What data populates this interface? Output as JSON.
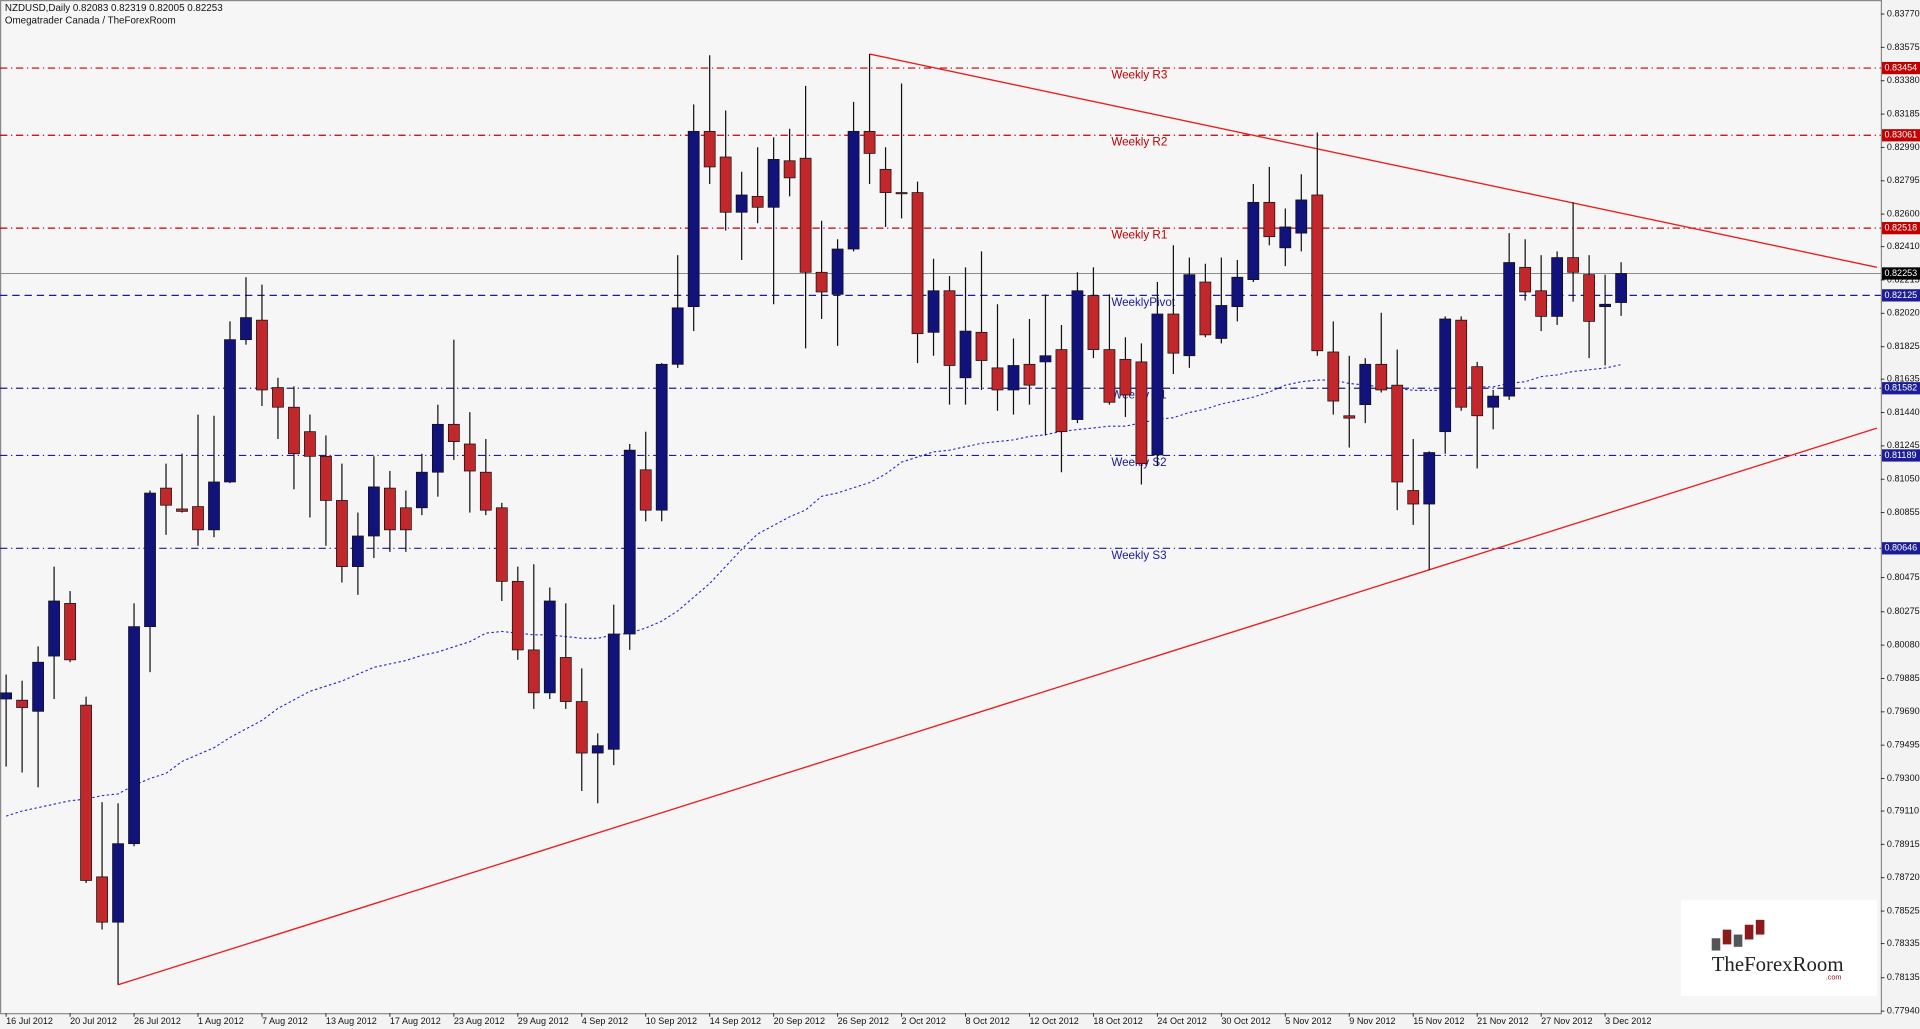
{
  "chart_data": {
    "type": "candlestick",
    "header": "NZDUSD,Daily  0.82083 0.82319 0.82005 0.82253",
    "source": "Omegatrader Canada / TheForexRoom",
    "logo": "TheForexRoom",
    "logo_suffix": ".com",
    "categories": [
      "16 Jul 2012",
      null,
      null,
      null,
      "20 Jul 2012",
      null,
      null,
      null,
      "26 Jul 2012",
      null,
      null,
      null,
      "1 Aug 2012",
      null,
      null,
      null,
      "7 Aug 2012",
      null,
      null,
      null,
      "13 Aug 2012",
      null,
      null,
      null,
      "17 Aug 2012",
      null,
      null,
      null,
      "23 Aug 2012",
      null,
      null,
      null,
      "29 Aug 2012",
      null,
      null,
      null,
      "4 Sep 2012",
      null,
      null,
      null,
      "10 Sep 2012",
      null,
      null,
      null,
      "14 Sep 2012",
      null,
      null,
      null,
      "20 Sep 2012",
      null,
      null,
      null,
      "26 Sep 2012",
      null,
      null,
      null,
      "2 Oct 2012",
      null,
      null,
      null,
      "8 Oct 2012",
      null,
      null,
      null,
      "12 Oct 2012",
      null,
      null,
      null,
      "18 Oct 2012",
      null,
      null,
      null,
      "24 Oct 2012",
      null,
      null,
      null,
      "30 Oct 2012",
      null,
      null,
      null,
      "5 Nov 2012",
      null,
      null,
      null,
      "9 Nov 2012",
      null,
      null,
      null,
      "15 Nov 2012",
      null,
      null,
      null,
      "21 Nov 2012",
      null,
      null,
      null,
      "27 Nov 2012",
      null,
      null,
      null,
      "3 Dec 2012",
      null
    ],
    "open": [
      0.79765,
      0.79758,
      0.79693,
      0.80016,
      0.80324,
      0.79729,
      0.78725,
      0.7846,
      0.78919,
      0.80188,
      0.80998,
      0.80876,
      0.8089,
      0.80754,
      0.81034,
      0.81866,
      0.8198,
      0.81586,
      0.81471,
      0.81328,
      0.81184,
      0.80926,
      0.80539,
      0.80718,
      0.80998,
      0.80883,
      0.80883,
      0.81091,
      0.81371,
      0.81256,
      0.81091,
      0.80883,
      0.80453,
      0.80052,
      0.79801,
      0.80008,
      0.7975,
      0.79449,
      0.79471,
      0.80145,
      0.81105,
      0.80869,
      0.81722,
      0.82059,
      0.83084,
      0.82934,
      0.82611,
      0.82704,
      0.8264,
      0.82912,
      0.82927,
      0.8226,
      0.82131,
      0.82396,
      0.83084,
      0.82862,
      0.82726,
      0.82726,
      0.81909,
      0.82152,
      0.81643,
      0.81909,
      0.81701,
      0.81572,
      0.81722,
      0.81736,
      0.81808,
      0.81399,
      0.82124,
      0.81808,
      0.81751,
      0.81736,
      0.81192,
      0.82016,
      0.81772,
      0.82203,
      0.81873,
      0.82059,
      0.82217,
      0.82669,
      0.82403,
      0.82489,
      0.82712,
      0.81794,
      0.81421,
      0.81486,
      0.81722,
      0.816,
      0.80984,
      0.80905,
      0.81328,
      0.8198,
      0.81708,
      0.81471,
      0.81536,
      0.82289,
      0.82152,
      0.82002,
      0.82346,
      0.82246,
      0.82059,
      0.82083
    ],
    "high": [
      0.79908,
      0.79872,
      0.80073,
      0.80539,
      0.80396,
      0.79779,
      0.79162,
      0.79155,
      0.80324,
      0.80984,
      0.81141,
      0.81199,
      0.81428,
      0.81421,
      0.81973,
      0.82231,
      0.82188,
      0.81643,
      0.81593,
      0.81428,
      0.81306,
      0.81141,
      0.80855,
      0.81184,
      0.81098,
      0.80984,
      0.81199,
      0.81486,
      0.81866,
      0.81442,
      0.81285,
      0.80912,
      0.80539,
      0.80553,
      0.80417,
      0.80324,
      0.79944,
      0.79564,
      0.80317,
      0.81256,
      0.81328,
      0.81729,
      0.8236,
      0.83242,
      0.83529,
      0.83206,
      0.82848,
      0.82991,
      0.83049,
      0.83099,
      0.8335,
      0.82561,
      0.82453,
      0.83256,
      0.83536,
      0.82991,
      0.83364,
      0.8279,
      0.82339,
      0.82238,
      0.82289,
      0.82382,
      0.82073,
      0.81873,
      0.81987,
      0.82131,
      0.81952,
      0.8226,
      0.82289,
      0.82131,
      0.8188,
      0.81844,
      0.82203,
      0.82418,
      0.82346,
      0.8231,
      0.82346,
      0.82332,
      0.82776,
      0.82876,
      0.82633,
      0.82833,
      0.83077,
      0.81973,
      0.81772,
      0.81758,
      0.82023,
      0.81808,
      0.81285,
      0.81213,
      0.82002,
      0.82002,
      0.81736,
      0.81572,
      0.82489,
      0.82453,
      0.8236,
      0.82382,
      0.82669,
      0.8236,
      0.82246,
      0.82319
    ],
    "low": [
      0.7937,
      0.79335,
      0.79248,
      0.79765,
      0.7998,
      0.78689,
      0.78417,
      0.78094,
      0.78904,
      0.79922,
      0.80725,
      0.80855,
      0.80661,
      0.80711,
      0.81027,
      0.81837,
      0.81478,
      0.81285,
      0.80991,
      0.80826,
      0.80661,
      0.80446,
      0.80374,
      0.80589,
      0.80625,
      0.80625,
      0.8084,
      0.80948,
      0.81163,
      0.80855,
      0.8084,
      0.80338,
      0.79994,
      0.79707,
      0.79765,
      0.79707,
      0.79227,
      0.79155,
      0.79378,
      0.80052,
      0.80804,
      0.80804,
      0.81701,
      0.81916,
      0.82776,
      0.82504,
      0.82332,
      0.82547,
      0.82073,
      0.82704,
      0.81815,
      0.81987,
      0.8183,
      0.82382,
      0.82776,
      0.82525,
      0.82575,
      0.81729,
      0.81772,
      0.81486,
      0.81486,
      0.81572,
      0.8145,
      0.81428,
      0.81486,
      0.81306,
      0.81091,
      0.81378,
      0.81758,
      0.81486,
      0.81414,
      0.81019,
      0.81127,
      0.81665,
      0.81701,
      0.8188,
      0.81844,
      0.81973,
      0.82203,
      0.82418,
      0.82296,
      0.82382,
      0.81772,
      0.81428,
      0.81235,
      0.81378,
      0.81557,
      0.80869,
      0.80783,
      0.80518,
      0.81199,
      0.8145,
      0.81113,
      0.81342,
      0.81514,
      0.82095,
      0.81916,
      0.81952,
      0.82088,
      0.81758,
      0.81715,
      0.82005
    ],
    "close": [
      0.79801,
      0.79715,
      0.7998,
      0.80338,
      0.79994,
      0.78704,
      0.7846,
      0.78919,
      0.80188,
      0.80969,
      0.80898,
      0.80862,
      0.80754,
      0.81034,
      0.81866,
      0.81995,
      0.81572,
      0.81471,
      0.81199,
      0.81184,
      0.80926,
      0.80539,
      0.80718,
      0.81005,
      0.80754,
      0.80754,
      0.81091,
      0.81371,
      0.8127,
      0.81098,
      0.80869,
      0.80453,
      0.80052,
      0.79801,
      0.80338,
      0.7975,
      0.79449,
      0.79492,
      0.80145,
      0.8122,
      0.80869,
      0.81722,
      0.82052,
      0.83084,
      0.82876,
      0.82611,
      0.82712,
      0.8264,
      0.8292,
      0.82812,
      0.8226,
      0.82145,
      0.82396,
      0.83084,
      0.82955,
      0.82726,
      0.82719,
      0.81901,
      0.82152,
      0.81715,
      0.81916,
      0.81744,
      0.81572,
      0.81715,
      0.816,
      0.81772,
      0.81328,
      0.82152,
      0.81808,
      0.815,
      0.81543,
      0.81141,
      0.82016,
      0.81787,
      0.82246,
      0.81894,
      0.82066,
      0.82231,
      0.82669,
      0.82468,
      0.82525,
      0.82683,
      0.81801,
      0.81507,
      0.81407,
      0.81722,
      0.81572,
      0.81034,
      0.80905,
      0.81206,
      0.81987,
      0.81471,
      0.81421,
      0.81536,
      0.82317,
      0.82145,
      0.82002,
      0.82346,
      0.8226,
      0.81973,
      0.82073,
      0.82253
    ],
    "bull_color": "#12127c",
    "bear_color": "#c2282b",
    "moving_average": {
      "color": "#2424d0",
      "values": [
        0.7908,
        0.7911,
        0.7913,
        0.7915,
        0.7917,
        0.7918,
        0.792,
        0.7921,
        0.7926,
        0.793,
        0.7933,
        0.794,
        0.7944,
        0.7948,
        0.7954,
        0.7959,
        0.7964,
        0.7971,
        0.7976,
        0.7981,
        0.7984,
        0.7987,
        0.7991,
        0.7995,
        0.7997,
        0.7999,
        0.8002,
        0.8004,
        0.8007,
        0.801,
        0.8015,
        0.8016,
        0.8015,
        0.8014,
        0.8014,
        0.8013,
        0.8012,
        0.8012,
        0.8014,
        0.8015,
        0.8018,
        0.8022,
        0.8028,
        0.8036,
        0.8044,
        0.8054,
        0.8064,
        0.8073,
        0.8078,
        0.8083,
        0.8087,
        0.8095,
        0.8097,
        0.81,
        0.8103,
        0.8108,
        0.8115,
        0.8118,
        0.8121,
        0.8122,
        0.8124,
        0.8126,
        0.8127,
        0.8128,
        0.813,
        0.8131,
        0.8133,
        0.8134,
        0.8135,
        0.8136,
        0.8136,
        0.8138,
        0.814,
        0.8141,
        0.8144,
        0.8146,
        0.8149,
        0.8151,
        0.8153,
        0.8156,
        0.816,
        0.8162,
        0.8163,
        0.8163,
        0.8161,
        0.816,
        0.8159,
        0.8158,
        0.8157,
        0.8157,
        0.8157,
        0.8159,
        0.8159,
        0.8159,
        0.8161,
        0.8162,
        0.8165,
        0.8166,
        0.8168,
        0.8169,
        0.817,
        0.8172
      ]
    },
    "levels": [
      {
        "name": "Weekly R3",
        "value": 0.83454,
        "color": "#c00000",
        "dash": "dashdot"
      },
      {
        "name": "Weekly R2",
        "value": 0.83061,
        "color": "#c00000",
        "dash": "dashdot"
      },
      {
        "name": "Weekly R1",
        "value": 0.82518,
        "color": "#c00000",
        "dash": "dashdot"
      },
      {
        "name": "WeeklyPivot",
        "value": 0.82125,
        "color": "#1c1c96",
        "dash": "dashed"
      },
      {
        "name": "Weekly S1",
        "value": 0.81582,
        "color": "#1c1c96",
        "dash": "dashdot"
      },
      {
        "name": "Weekly S2",
        "value": 0.81189,
        "color": "#1c1c96",
        "dash": "dashdot"
      },
      {
        "name": "Weekly S3",
        "value": 0.80646,
        "color": "#1c1c96",
        "dash": "dashdot"
      }
    ],
    "price_line": 0.82253,
    "trendlines": [
      {
        "x": [
          54,
          117
        ],
        "y": [
          0.83536,
          0.82289
        ],
        "color": "#ee1c1c"
      },
      {
        "x": [
          7,
          117
        ],
        "y": [
          0.78094,
          0.81349
        ],
        "color": "#ee1c1c"
      }
    ],
    "ylim": [
      0.779,
      0.83852
    ],
    "yticks": [
      {
        "value": 0.8377,
        "label": "0.83770"
      },
      0.83575,
      {
        "value": 0.8338,
        "label": "0.83380"
      },
      0.83185,
      {
        "value": 0.8299,
        "label": "0.82990"
      },
      0.82795,
      {
        "value": 0.826,
        "label": "0.82600"
      },
      {
        "value": 0.8241,
        "label": "0.82410"
      },
      0.82215,
      {
        "value": 0.8202,
        "label": "0.82020"
      },
      0.81825,
      0.81635,
      {
        "value": 0.8144,
        "label": "0.81440"
      },
      0.81245,
      {
        "value": 0.8105,
        "label": "0.81050"
      },
      0.80855,
      0.80475,
      0.80275,
      {
        "value": 0.8008,
        "label": "0.80080"
      },
      0.79885,
      {
        "value": 0.7969,
        "label": "0.79690"
      },
      0.79495,
      {
        "value": 0.793,
        "label": "0.79300"
      },
      {
        "value": 0.7911,
        "label": "0.79110"
      },
      0.78915,
      {
        "value": 0.7872,
        "label": "0.78720"
      },
      0.78525,
      0.78335,
      0.78135,
      {
        "value": 0.7794,
        "label": "0.77940"
      }
    ],
    "grid": false
  }
}
